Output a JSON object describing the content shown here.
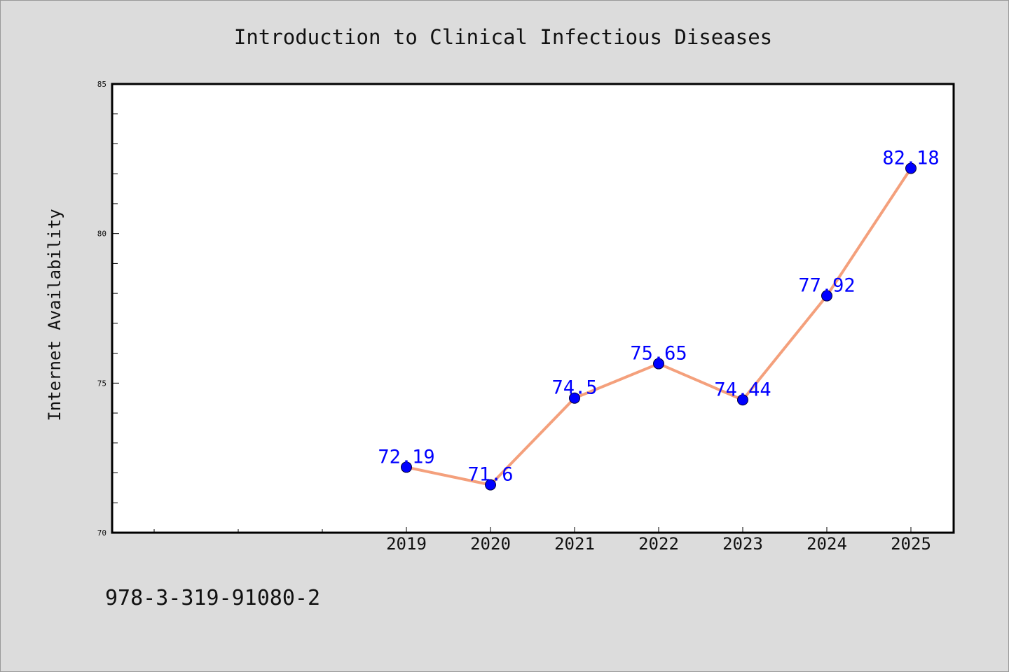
{
  "chart_data": {
    "type": "line",
    "title": "Introduction to Clinical Infectious Diseases",
    "xlabel": "",
    "ylabel": "Internet Availability",
    "categories": [
      "2019",
      "2020",
      "2021",
      "2022",
      "2023",
      "2024",
      "2025"
    ],
    "series": [
      {
        "values": [
          72.19,
          71.6,
          74.5,
          75.65,
          74.44,
          77.92,
          82.18
        ],
        "labels": [
          "72.19",
          "71.6",
          "74.5",
          "75.65",
          "74.44",
          "77.92",
          "82.18"
        ]
      }
    ],
    "ylim": [
      70,
      85
    ],
    "yticks": [
      "70",
      "75",
      "80",
      "85"
    ],
    "grid": false,
    "line_color": "#f4a07c",
    "marker_color": "#0000ff",
    "label_color": "#0000ff"
  },
  "footer_text": "978-3-319-91080-2"
}
